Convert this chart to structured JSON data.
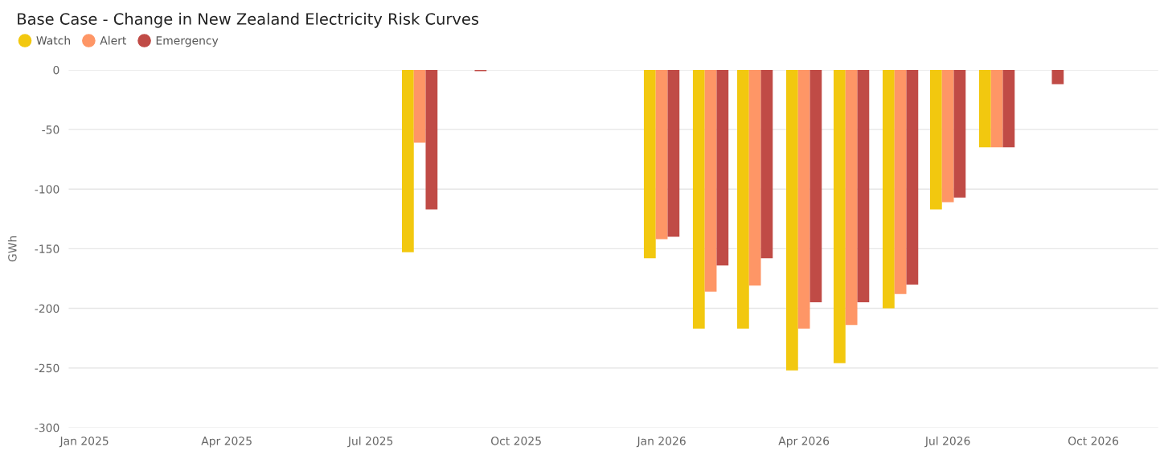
{
  "chart_data": {
    "type": "bar",
    "title": "Base Case - Change in New Zealand Electricity Risk Curves",
    "ylabel": "GWh",
    "x": [
      "2025-08",
      "2025-09",
      "2026-01",
      "2026-02",
      "2026-03",
      "2026-04",
      "2026-05",
      "2026-06",
      "2026-07",
      "2026-08",
      "2026-09"
    ],
    "series": [
      {
        "name": "Watch",
        "color": "#f2c80f",
        "values": [
          -153,
          null,
          -158,
          -217,
          -217,
          -252,
          -246,
          -200,
          -117,
          -65,
          null
        ]
      },
      {
        "name": "Alert",
        "color": "#fe9666",
        "values": [
          -61,
          null,
          -142,
          -186,
          -181,
          -217,
          -214,
          -188,
          -111,
          -65,
          null
        ]
      },
      {
        "name": "Emergency",
        "color": "#c04b46",
        "values": [
          -117,
          -1,
          -140,
          -164,
          -158,
          -195,
          -195,
          -180,
          -107,
          -65,
          -12
        ]
      }
    ],
    "xlim": [
      "2024-12-22",
      "2026-11-11"
    ],
    "xticks": [
      {
        "value": "2025-01",
        "label": "Jan 2025"
      },
      {
        "value": "2025-04",
        "label": "Apr 2025"
      },
      {
        "value": "2025-07",
        "label": "Jul 2025"
      },
      {
        "value": "2025-10",
        "label": "Oct 2025"
      },
      {
        "value": "2026-01",
        "label": "Jan 2026"
      },
      {
        "value": "2026-04",
        "label": "Apr 2026"
      },
      {
        "value": "2026-07",
        "label": "Jul 2026"
      },
      {
        "value": "2026-10",
        "label": "Oct 2026"
      }
    ],
    "ylim": [
      -300,
      0
    ],
    "yticks": [
      -300,
      -250,
      -200,
      -150,
      -100,
      -50,
      0
    ],
    "grid": "y",
    "legend": "top left"
  }
}
